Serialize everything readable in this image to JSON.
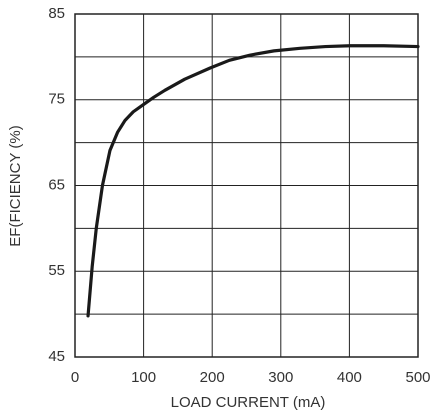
{
  "chart_data": {
    "type": "line",
    "x": [
      19,
      25,
      31,
      40,
      51,
      62,
      73,
      85,
      99,
      115,
      131,
      160,
      197,
      225,
      255,
      290,
      328,
      365,
      401,
      450,
      500
    ],
    "series": [
      {
        "name": "Efficiency",
        "color": "#1a1a1a",
        "values": [
          49.8,
          55.5,
          60,
          65,
          69.1,
          71.2,
          72.6,
          73.6,
          74.4,
          75.3,
          76.1,
          77.4,
          78.7,
          79.6,
          80.2,
          80.7,
          81,
          81.2,
          81.3,
          81.3,
          81.2
        ]
      }
    ],
    "xlabel": "LOAD CURRENT (mA)",
    "ylabel": "EF(FICIENCY (%)",
    "xlim": [
      0,
      500
    ],
    "xticks": [
      0,
      100,
      200,
      300,
      400,
      500
    ],
    "ylim": [
      45,
      85
    ],
    "yticks": [
      45,
      55,
      65,
      75,
      85
    ],
    "yminor": [
      50,
      60,
      70,
      80
    ],
    "grid": true
  }
}
